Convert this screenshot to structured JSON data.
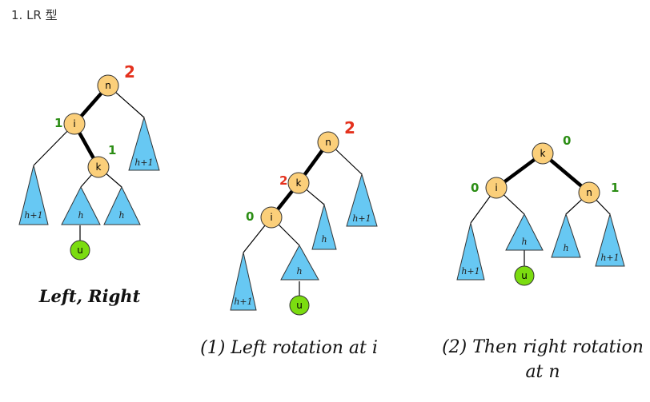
{
  "heading": "1. LR 型",
  "labels": {
    "n": "n",
    "i": "i",
    "k": "k",
    "u": "u",
    "h": "h",
    "h1": "h+1"
  },
  "balance": {
    "two": "2",
    "one": "1",
    "zero": "0"
  },
  "captions": {
    "left_right": "Left, Right",
    "step1": "(1) Left rotation at i",
    "step2_line1": "(2) Then right rotation",
    "step2_line2": "at n"
  },
  "colors": {
    "node": "#fbcf7a",
    "leaf_u": "#7bdc10",
    "subtree": "#67c8f3",
    "balance_red": "#e4311d",
    "balance_green": "#2b8d14"
  }
}
